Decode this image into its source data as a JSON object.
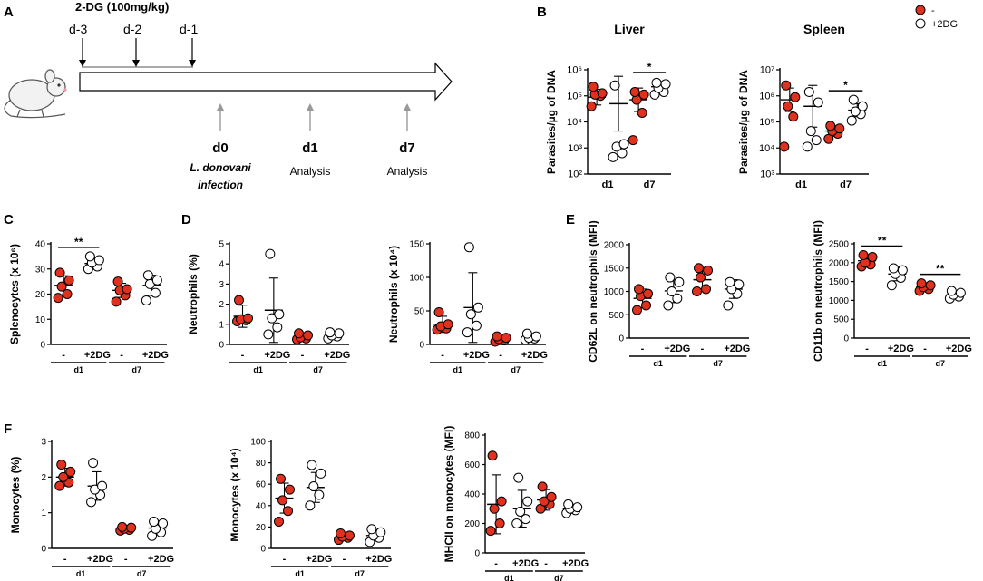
{
  "panel_letters": {
    "a": "A",
    "b": "B",
    "c": "C",
    "d": "D",
    "e": "E",
    "f": "F"
  },
  "colors": {
    "control": "#e0301e",
    "treated": "#ffffff",
    "axis": "#000000",
    "arrow_grey": "#999999"
  },
  "schematic": {
    "drug": "2-DG (100mg/kg)",
    "pre_days": [
      "d-3",
      "d-2",
      "d-1"
    ],
    "timepoints": [
      {
        "day": "d0",
        "lines": [
          "L. donovani",
          "infection"
        ]
      },
      {
        "day": "d1",
        "lines": [
          "Analysis"
        ]
      },
      {
        "day": "d7",
        "lines": [
          "Analysis"
        ]
      }
    ]
  },
  "legend": {
    "control": "-",
    "treated": "+2DG"
  },
  "chart_data": [
    {
      "id": "liver",
      "panel": "B",
      "type": "scatter",
      "log": true,
      "title": "Liver",
      "ylabel": "Parasites/µg of DNA",
      "yticks": [
        "10²",
        "10³",
        "10⁴",
        "10⁵",
        "10⁶"
      ],
      "ylim": [
        2,
        6
      ],
      "groups": [
        "d1",
        "d7"
      ],
      "series": [
        {
          "group": "d1",
          "treat": "-",
          "values": [
            4.6,
            5.0,
            5.05,
            5.1,
            5.35
          ],
          "mean": 4.95,
          "sd": 0.3
        },
        {
          "group": "d1",
          "treat": "+2DG",
          "values": [
            2.65,
            2.8,
            3.05,
            3.15,
            5.4
          ],
          "mean": 4.7,
          "sd": 1.05
        },
        {
          "group": "d7",
          "treat": "-",
          "values": [
            3.3,
            4.35,
            4.85,
            5.05,
            5.15
          ],
          "mean": 4.85,
          "sd": 0.45
        },
        {
          "group": "d7",
          "treat": "+2DG",
          "values": [
            5.05,
            5.15,
            5.3,
            5.45,
            5.5
          ],
          "mean": 5.35,
          "sd": 0.2
        }
      ],
      "significance": [
        {
          "group": "d7",
          "label": "*"
        }
      ]
    },
    {
      "id": "spleen",
      "panel": "B",
      "type": "scatter",
      "log": true,
      "title": "Spleen",
      "ylabel": "Parasites/µg of DNA",
      "yticks": [
        "10³",
        "10⁴",
        "10⁵",
        "10⁶",
        "10⁷"
      ],
      "ylim": [
        3,
        7
      ],
      "groups": [
        "d1",
        "d7"
      ],
      "series": [
        {
          "group": "d1",
          "treat": "-",
          "values": [
            4.05,
            5.2,
            5.6,
            5.95,
            6.4
          ],
          "mean": 5.85,
          "sd": 0.45
        },
        {
          "group": "d1",
          "treat": "+2DG",
          "values": [
            4.05,
            4.3,
            4.65,
            5.75,
            6.15
          ],
          "mean": 5.6,
          "sd": 0.8
        },
        {
          "group": "d7",
          "treat": "-",
          "values": [
            4.35,
            4.55,
            4.65,
            4.75,
            4.85
          ],
          "mean": 4.65,
          "sd": 0.2
        },
        {
          "group": "d7",
          "treat": "+2DG",
          "values": [
            5.05,
            5.3,
            5.4,
            5.6,
            5.85
          ],
          "mean": 5.45,
          "sd": 0.25
        }
      ],
      "significance": [
        {
          "group": "d7",
          "label": "*"
        }
      ]
    },
    {
      "id": "splenocytes",
      "panel": "C",
      "type": "scatter",
      "ylabel": "Splenocytes (x 10⁶)",
      "ylim": [
        0,
        40
      ],
      "yticks": [
        "0",
        "10",
        "20",
        "30",
        "40"
      ],
      "groups": [
        "d1",
        "d7"
      ],
      "series": [
        {
          "group": "d1",
          "treat": "-",
          "values": [
            18.5,
            20.0,
            23.0,
            25.5,
            28.5
          ],
          "mean": 23.5,
          "sd": 3.8
        },
        {
          "group": "d1",
          "treat": "+2DG",
          "values": [
            30.0,
            31.0,
            32.5,
            33.5,
            35.0
          ],
          "mean": 32.2,
          "sd": 2.0
        },
        {
          "group": "d7",
          "treat": "-",
          "values": [
            17.0,
            19.5,
            21.5,
            22.0,
            25.0
          ],
          "mean": 21.5,
          "sd": 2.8
        },
        {
          "group": "d7",
          "treat": "+2DG",
          "values": [
            17.5,
            20.5,
            24.0,
            25.5,
            27.5
          ],
          "mean": 23.5,
          "sd": 4.0
        }
      ],
      "significance": [
        {
          "group": "d1",
          "label": "**"
        }
      ]
    },
    {
      "id": "neutrophils_pct",
      "panel": "D",
      "type": "scatter",
      "ylabel": "Neutrophils (%)",
      "ylim": [
        0,
        5
      ],
      "yticks": [
        "0",
        "1",
        "2",
        "3",
        "4",
        "5"
      ],
      "groups": [
        "d1",
        "d7"
      ],
      "series": [
        {
          "group": "d1",
          "treat": "-",
          "values": [
            1.15,
            1.2,
            1.25,
            1.3,
            2.2
          ],
          "mean": 1.4,
          "sd": 0.55
        },
        {
          "group": "d1",
          "treat": "+2DG",
          "values": [
            0.5,
            0.85,
            1.3,
            1.5,
            4.5
          ],
          "mean": 1.7,
          "sd": 1.6
        },
        {
          "group": "d7",
          "treat": "-",
          "values": [
            0.25,
            0.3,
            0.35,
            0.45,
            0.55
          ],
          "mean": 0.4,
          "sd": 0.15
        },
        {
          "group": "d7",
          "treat": "+2DG",
          "values": [
            0.3,
            0.4,
            0.45,
            0.55,
            0.6
          ],
          "mean": 0.45,
          "sd": 0.15
        }
      ],
      "significance": []
    },
    {
      "id": "neutrophils_abs",
      "panel": "D",
      "type": "scatter",
      "ylabel": "Neutrophils (x 10⁴)",
      "ylim": [
        0,
        150
      ],
      "yticks": [
        "0",
        "50",
        "100",
        "150"
      ],
      "groups": [
        "d1",
        "d7"
      ],
      "series": [
        {
          "group": "d1",
          "treat": "-",
          "values": [
            22,
            24,
            27,
            30,
            48
          ],
          "mean": 30,
          "sd": 12
        },
        {
          "group": "d1",
          "treat": "+2DG",
          "values": [
            18,
            28,
            45,
            55,
            145
          ],
          "mean": 55,
          "sd": 52
        },
        {
          "group": "d7",
          "treat": "-",
          "values": [
            4,
            6,
            8,
            10,
            12
          ],
          "mean": 8,
          "sd": 4
        },
        {
          "group": "d7",
          "treat": "+2DG",
          "values": [
            7,
            9,
            10,
            12,
            16
          ],
          "mean": 11,
          "sd": 5
        }
      ],
      "significance": []
    },
    {
      "id": "cd62l",
      "panel": "E",
      "type": "scatter",
      "ylabel": "CD62L on neutrophils (MFI)",
      "ylim": [
        0,
        2000
      ],
      "yticks": [
        "0",
        "500",
        "1000",
        "1500",
        "2000"
      ],
      "groups": [
        "d1",
        "d7"
      ],
      "series": [
        {
          "group": "d1",
          "treat": "-",
          "values": [
            600,
            700,
            900,
            950,
            1050
          ],
          "mean": 850,
          "sd": 200
        },
        {
          "group": "d1",
          "treat": "+2DG",
          "values": [
            700,
            850,
            1000,
            1200,
            1300
          ],
          "mean": 1010,
          "sd": 250
        },
        {
          "group": "d7",
          "treat": "-",
          "values": [
            1000,
            1050,
            1300,
            1450,
            1500
          ],
          "mean": 1250,
          "sd": 230
        },
        {
          "group": "d7",
          "treat": "+2DG",
          "values": [
            700,
            950,
            1050,
            1150,
            1200
          ],
          "mean": 1050,
          "sd": 200
        }
      ],
      "significance": []
    },
    {
      "id": "cd11b",
      "panel": "E",
      "type": "scatter",
      "ylabel": "CD11b on neutrophils (MFI)",
      "ylim": [
        0,
        2500
      ],
      "yticks": [
        "0",
        "500",
        "1000",
        "1500",
        "2000",
        "2500"
      ],
      "groups": [
        "d1",
        "d7"
      ],
      "series": [
        {
          "group": "d1",
          "treat": "-",
          "values": [
            1900,
            1950,
            2000,
            2150,
            2200
          ],
          "mean": 2050,
          "sd": 120
        },
        {
          "group": "d1",
          "treat": "+2DG",
          "values": [
            1400,
            1600,
            1700,
            1800,
            1850
          ],
          "mean": 1700,
          "sd": 180
        },
        {
          "group": "d7",
          "treat": "-",
          "values": [
            1250,
            1300,
            1350,
            1400,
            1450
          ],
          "mean": 1350,
          "sd": 80
        },
        {
          "group": "d7",
          "treat": "+2DG",
          "values": [
            1050,
            1100,
            1150,
            1200,
            1250
          ],
          "mean": 1150,
          "sd": 80
        }
      ],
      "significance": [
        {
          "group": "d1",
          "label": "**"
        },
        {
          "group": "d7",
          "label": "**"
        }
      ]
    },
    {
      "id": "monocytes_pct",
      "panel": "F",
      "type": "scatter",
      "ylabel": "Monocytes (%)",
      "ylim": [
        0,
        3
      ],
      "yticks": [
        "0",
        "1",
        "2",
        "3"
      ],
      "groups": [
        "d1",
        "d7"
      ],
      "series": [
        {
          "group": "d1",
          "treat": "-",
          "values": [
            1.75,
            1.85,
            2.0,
            2.15,
            2.35
          ],
          "mean": 2.0,
          "sd": 0.25
        },
        {
          "group": "d1",
          "treat": "+2DG",
          "values": [
            1.3,
            1.5,
            1.65,
            1.75,
            2.4
          ],
          "mean": 1.75,
          "sd": 0.4
        },
        {
          "group": "d7",
          "treat": "-",
          "values": [
            0.5,
            0.52,
            0.55,
            0.58,
            0.6
          ],
          "mean": 0.55,
          "sd": 0.05
        },
        {
          "group": "d7",
          "treat": "+2DG",
          "values": [
            0.35,
            0.45,
            0.55,
            0.7,
            0.75
          ],
          "mean": 0.57,
          "sd": 0.17
        }
      ],
      "significance": []
    },
    {
      "id": "monocytes_abs",
      "panel": "F",
      "type": "scatter",
      "ylabel": "Monocytes (x 10⁴)",
      "ylim": [
        0,
        100
      ],
      "yticks": [
        "0",
        "20",
        "40",
        "60",
        "80",
        "100"
      ],
      "groups": [
        "d1",
        "d7"
      ],
      "series": [
        {
          "group": "d1",
          "treat": "-",
          "values": [
            25,
            35,
            45,
            55,
            65
          ],
          "mean": 47,
          "sd": 14
        },
        {
          "group": "d1",
          "treat": "+2DG",
          "values": [
            40,
            50,
            58,
            70,
            78
          ],
          "mean": 57,
          "sd": 14
        },
        {
          "group": "d7",
          "treat": "-",
          "values": [
            8,
            10,
            11,
            12,
            14
          ],
          "mean": 11,
          "sd": 3
        },
        {
          "group": "d7",
          "treat": "+2DG",
          "values": [
            6,
            10,
            12,
            15,
            18
          ],
          "mean": 12,
          "sd": 5
        }
      ],
      "significance": []
    },
    {
      "id": "mhcii",
      "panel": "F",
      "type": "scatter",
      "ylabel": "MHCII on monocytes (MFI)",
      "ylim": [
        0,
        800
      ],
      "yticks": [
        "0",
        "200",
        "400",
        "600",
        "800"
      ],
      "groups": [
        "d1",
        "d7"
      ],
      "series": [
        {
          "group": "d1",
          "treat": "-",
          "values": [
            150,
            200,
            300,
            350,
            660
          ],
          "mean": 330,
          "sd": 200
        },
        {
          "group": "d1",
          "treat": "+2DG",
          "values": [
            200,
            230,
            280,
            350,
            510
          ],
          "mean": 300,
          "sd": 125
        },
        {
          "group": "d7",
          "treat": "-",
          "values": [
            300,
            330,
            350,
            380,
            450
          ],
          "mean": 360,
          "sd": 70
        },
        {
          "group": "d7",
          "treat": "+2DG",
          "values": [
            270,
            290,
            300,
            310,
            330
          ],
          "mean": 300,
          "sd": 30
        }
      ],
      "significance": []
    }
  ]
}
